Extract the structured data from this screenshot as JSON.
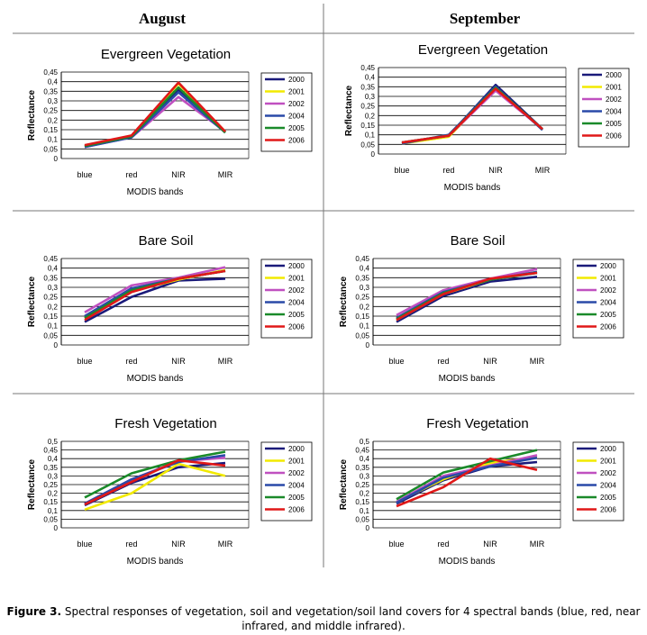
{
  "columns": [
    "August",
    "September"
  ],
  "caption": {
    "label": "Figure 3.",
    "text": "Spectral responses of vegetation, soil and vegetation/soil land covers for 4 spectral bands (blue, red, near infrared, and middle infrared)."
  },
  "colors": {
    "2000": "#1a1a7a",
    "2001": "#f2ea00",
    "2002": "#c050c0",
    "2004": "#2a4aa8",
    "2005": "#1a8a2a",
    "2006": "#e01818"
  },
  "chart_data": [
    {
      "type": "line",
      "column": "August",
      "title": "Evergreen Vegetation",
      "categories": [
        "blue",
        "red",
        "NIR",
        "MIR"
      ],
      "xlabel": "MODIS bands",
      "ylabel": "Reflectance",
      "ylim": [
        0,
        0.45
      ],
      "yticks": [
        "0",
        "0,05",
        "0,1",
        "0,15",
        "0,2",
        "0,25",
        "0,3",
        "0,35",
        "0,4",
        "0,45"
      ],
      "ystep": 0.05,
      "series": [
        {
          "name": "2000",
          "values": [
            0.065,
            0.115,
            0.36,
            0.14
          ]
        },
        {
          "name": "2001",
          "values": [
            0.065,
            0.115,
            0.39,
            0.14
          ]
        },
        {
          "name": "2002",
          "values": [
            0.06,
            0.11,
            0.32,
            0.14
          ]
        },
        {
          "name": "2004",
          "values": [
            0.06,
            0.11,
            0.345,
            0.135
          ]
        },
        {
          "name": "2005",
          "values": [
            0.065,
            0.115,
            0.37,
            0.135
          ]
        },
        {
          "name": "2006",
          "values": [
            0.07,
            0.12,
            0.395,
            0.14
          ]
        }
      ]
    },
    {
      "type": "line",
      "column": "September",
      "title": "Evergreen Vegetation",
      "categories": [
        "blue",
        "red",
        "NIR",
        "MIR"
      ],
      "xlabel": "MODIS bands",
      "ylabel": "Reflectance",
      "ylim": [
        0,
        0.45
      ],
      "yticks": [
        "0",
        "0,05",
        "0,1",
        "0,15",
        "0,2",
        "0,25",
        "0,3",
        "0,35",
        "0,4",
        "0,45"
      ],
      "ystep": 0.05,
      "series": [
        {
          "name": "2000",
          "values": [
            0.055,
            0.095,
            0.36,
            0.13
          ]
        },
        {
          "name": "2001",
          "values": [
            0.055,
            0.09,
            0.34,
            0.13
          ]
        },
        {
          "name": "2002",
          "values": [
            0.06,
            0.095,
            0.33,
            0.13
          ]
        },
        {
          "name": "2004",
          "values": [
            0.055,
            0.1,
            0.35,
            0.125
          ]
        },
        {
          "name": "2005",
          "values": [
            0.06,
            0.095,
            0.345,
            0.13
          ]
        },
        {
          "name": "2006",
          "values": [
            0.06,
            0.095,
            0.34,
            0.13
          ]
        }
      ]
    },
    {
      "type": "line",
      "column": "August",
      "title": "Bare Soil",
      "categories": [
        "blue",
        "red",
        "NIR",
        "MIR"
      ],
      "xlabel": "MODIS bands",
      "ylabel": "Reflectance",
      "ylim": [
        0,
        0.45
      ],
      "yticks": [
        "0",
        "0,05",
        "0,1",
        "0,15",
        "0,2",
        "0,25",
        "0,3",
        "0,35",
        "0,4",
        "0,45"
      ],
      "ystep": 0.05,
      "series": [
        {
          "name": "2000",
          "values": [
            0.12,
            0.25,
            0.335,
            0.345
          ]
        },
        {
          "name": "2001",
          "values": [
            0.14,
            0.28,
            0.34,
            0.39
          ]
        },
        {
          "name": "2002",
          "values": [
            0.17,
            0.31,
            0.35,
            0.405
          ]
        },
        {
          "name": "2004",
          "values": [
            0.15,
            0.295,
            0.345,
            0.385
          ]
        },
        {
          "name": "2005",
          "values": [
            0.14,
            0.285,
            0.345,
            0.385
          ]
        },
        {
          "name": "2006",
          "values": [
            0.13,
            0.275,
            0.345,
            0.385
          ]
        }
      ]
    },
    {
      "type": "line",
      "column": "September",
      "title": "Bare Soil",
      "categories": [
        "blue",
        "red",
        "NIR",
        "MIR"
      ],
      "xlabel": "MODIS bands",
      "ylabel": "Reflectance",
      "ylim": [
        0,
        0.45
      ],
      "yticks": [
        "0",
        "0,05",
        "0,1",
        "0,15",
        "0,2",
        "0,25",
        "0,3",
        "0,35",
        "0,4",
        "0,45"
      ],
      "ystep": 0.05,
      "series": [
        {
          "name": "2000",
          "values": [
            0.12,
            0.255,
            0.33,
            0.355
          ]
        },
        {
          "name": "2001",
          "values": [
            0.13,
            0.265,
            0.34,
            0.38
          ]
        },
        {
          "name": "2002",
          "values": [
            0.155,
            0.285,
            0.345,
            0.395
          ]
        },
        {
          "name": "2004",
          "values": [
            0.14,
            0.275,
            0.34,
            0.38
          ]
        },
        {
          "name": "2005",
          "values": [
            0.135,
            0.27,
            0.34,
            0.375
          ]
        },
        {
          "name": "2006",
          "values": [
            0.13,
            0.265,
            0.345,
            0.375
          ]
        }
      ]
    },
    {
      "type": "line",
      "column": "August",
      "title": "Fresh Vegetation",
      "categories": [
        "blue",
        "red",
        "NIR",
        "MIR"
      ],
      "xlabel": "MODIS bands",
      "ylabel": "Reflectance",
      "ylim": [
        0,
        0.5
      ],
      "yticks": [
        "0",
        "0,05",
        "0,1",
        "0,15",
        "0,2",
        "0,25",
        "0,3",
        "0,35",
        "0,4",
        "0,45",
        "0,5"
      ],
      "ystep": 0.05,
      "series": [
        {
          "name": "2000",
          "values": [
            0.13,
            0.26,
            0.35,
            0.375
          ]
        },
        {
          "name": "2001",
          "values": [
            0.105,
            0.2,
            0.37,
            0.3
          ]
        },
        {
          "name": "2002",
          "values": [
            0.14,
            0.28,
            0.385,
            0.405
          ]
        },
        {
          "name": "2004",
          "values": [
            0.14,
            0.28,
            0.38,
            0.42
          ]
        },
        {
          "name": "2005",
          "values": [
            0.175,
            0.315,
            0.39,
            0.44
          ]
        },
        {
          "name": "2006",
          "values": [
            0.135,
            0.265,
            0.39,
            0.36
          ]
        }
      ]
    },
    {
      "type": "line",
      "column": "September",
      "title": "Fresh Vegetation",
      "categories": [
        "blue",
        "red",
        "NIR",
        "MIR"
      ],
      "xlabel": "MODIS bands",
      "ylabel": "Reflectance",
      "ylim": [
        0,
        0.5
      ],
      "yticks": [
        "0",
        "0,05",
        "0,1",
        "0,15",
        "0,2",
        "0,25",
        "0,3",
        "0,35",
        "0,4",
        "0,45",
        "0,5"
      ],
      "ystep": 0.05,
      "series": [
        {
          "name": "2000",
          "values": [
            0.14,
            0.275,
            0.355,
            0.38
          ]
        },
        {
          "name": "2001",
          "values": [
            0.15,
            0.28,
            0.375,
            0.41
          ]
        },
        {
          "name": "2002",
          "values": [
            0.15,
            0.3,
            0.36,
            0.42
          ]
        },
        {
          "name": "2004",
          "values": [
            0.145,
            0.29,
            0.355,
            0.405
          ]
        },
        {
          "name": "2005",
          "values": [
            0.165,
            0.32,
            0.385,
            0.45
          ]
        },
        {
          "name": "2006",
          "values": [
            0.125,
            0.235,
            0.4,
            0.335
          ]
        }
      ]
    }
  ]
}
